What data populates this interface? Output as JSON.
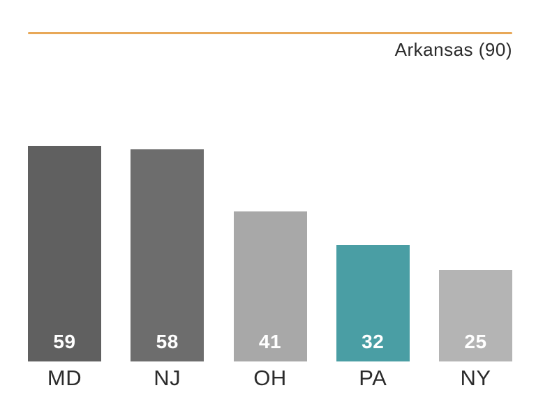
{
  "chart_data": {
    "type": "bar",
    "title": "",
    "xlabel": "",
    "ylabel": "",
    "categories": [
      "MD",
      "NJ",
      "OH",
      "PA",
      "NY"
    ],
    "values": [
      59,
      58,
      41,
      32,
      25
    ],
    "ylim": [
      0,
      90
    ],
    "grid": false,
    "legend_position": "none",
    "reference_line": {
      "label": "Arkansas (90)",
      "value": 90,
      "color": "#E8A858"
    },
    "bar_colors": [
      "#606060",
      "#6D6D6D",
      "#A8A8A8",
      "#4A9EA4",
      "#B4B4B4"
    ],
    "value_label_color": "#FFFFFF",
    "category_label_color": "#2B2B2B"
  }
}
